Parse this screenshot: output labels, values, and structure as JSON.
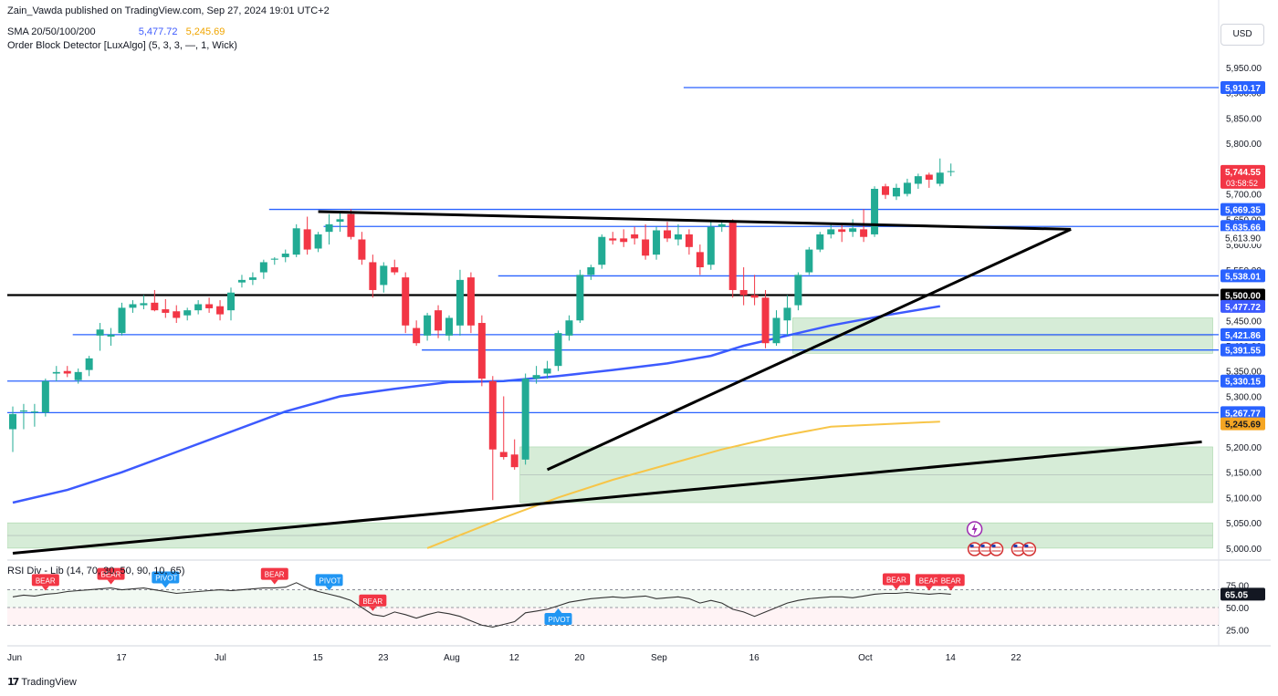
{
  "header": {
    "publisher": "Zain_Vawda published on TradingView.com, Sep 27, 2024 19:01 UTC+2",
    "sma_label": "SMA 20/50/100/200",
    "sma_value_1": "5,477.72",
    "sma_value_2": "5,245.69",
    "indicator_label": "Order Block Detector [LuxAlgo] (5, 3, 3, —, 1, Wick)",
    "rsi_label": "RSI Div - Lib (14, 70, 30, 50, 90, 10, 65)",
    "currency": "USD"
  },
  "footer": {
    "brand": "TradingView"
  },
  "colors": {
    "up": "#26a69a",
    "down": "#f23645",
    "up_bright": "#22ab94",
    "level_line": "#2962ff",
    "sma_blue": "#3d5afe",
    "sma_orange": "#f7c548",
    "zone": "#c8e6c9",
    "last_price": "#f23645"
  },
  "chart_data": {
    "type": "candlestick",
    "symbol_currency": "USD",
    "ylim": [
      4980,
      5975
    ],
    "y_ticks": [
      5000,
      5050,
      5100,
      5150,
      5200,
      5250,
      5300,
      5350,
      5400,
      5450,
      5500,
      5550,
      5600,
      5650,
      5700,
      5750,
      5800,
      5850,
      5900,
      5950
    ],
    "x_tick_labels": [
      {
        "label": "Jun",
        "bar": 0
      },
      {
        "label": "17",
        "bar": 10
      },
      {
        "label": "Jul",
        "bar": 19
      },
      {
        "label": "15",
        "bar": 28
      },
      {
        "label": "23",
        "bar": 34
      },
      {
        "label": "Aug",
        "bar": 40
      },
      {
        "label": "12",
        "bar": 46
      },
      {
        "label": "20",
        "bar": 52
      },
      {
        "label": "Sep",
        "bar": 59
      },
      {
        "label": "16",
        "bar": 68
      },
      {
        "label": "Oct",
        "bar": 78
      },
      {
        "label": "14",
        "bar": 86
      },
      {
        "label": "22",
        "bar": 92
      }
    ],
    "candles": [
      {
        "o": 5235,
        "h": 5280,
        "l": 5190,
        "c": 5265
      },
      {
        "o": 5270,
        "h": 5285,
        "l": 5235,
        "c": 5272
      },
      {
        "o": 5268,
        "h": 5285,
        "l": 5240,
        "c": 5270
      },
      {
        "o": 5268,
        "h": 5335,
        "l": 5260,
        "c": 5330
      },
      {
        "o": 5345,
        "h": 5360,
        "l": 5330,
        "c": 5348
      },
      {
        "o": 5350,
        "h": 5360,
        "l": 5338,
        "c": 5345
      },
      {
        "o": 5332,
        "h": 5355,
        "l": 5325,
        "c": 5348
      },
      {
        "o": 5352,
        "h": 5380,
        "l": 5340,
        "c": 5375
      },
      {
        "o": 5420,
        "h": 5445,
        "l": 5390,
        "c": 5432
      },
      {
        "o": 5418,
        "h": 5435,
        "l": 5400,
        "c": 5422
      },
      {
        "o": 5425,
        "h": 5485,
        "l": 5420,
        "c": 5475
      },
      {
        "o": 5475,
        "h": 5490,
        "l": 5465,
        "c": 5482
      },
      {
        "o": 5480,
        "h": 5500,
        "l": 5472,
        "c": 5484
      },
      {
        "o": 5485,
        "h": 5510,
        "l": 5468,
        "c": 5470
      },
      {
        "o": 5472,
        "h": 5492,
        "l": 5455,
        "c": 5465
      },
      {
        "o": 5468,
        "h": 5480,
        "l": 5445,
        "c": 5455
      },
      {
        "o": 5460,
        "h": 5475,
        "l": 5450,
        "c": 5470
      },
      {
        "o": 5470,
        "h": 5490,
        "l": 5462,
        "c": 5482
      },
      {
        "o": 5482,
        "h": 5495,
        "l": 5465,
        "c": 5474
      },
      {
        "o": 5478,
        "h": 5490,
        "l": 5450,
        "c": 5462
      },
      {
        "o": 5470,
        "h": 5515,
        "l": 5450,
        "c": 5505
      },
      {
        "o": 5525,
        "h": 5540,
        "l": 5515,
        "c": 5530
      },
      {
        "o": 5530,
        "h": 5545,
        "l": 5520,
        "c": 5535
      },
      {
        "o": 5545,
        "h": 5570,
        "l": 5532,
        "c": 5565
      },
      {
        "o": 5570,
        "h": 5575,
        "l": 5560,
        "c": 5572
      },
      {
        "o": 5575,
        "h": 5590,
        "l": 5565,
        "c": 5582
      },
      {
        "o": 5580,
        "h": 5640,
        "l": 5575,
        "c": 5632
      },
      {
        "o": 5630,
        "h": 5655,
        "l": 5580,
        "c": 5590
      },
      {
        "o": 5592,
        "h": 5625,
        "l": 5585,
        "c": 5620
      },
      {
        "o": 5625,
        "h": 5660,
        "l": 5600,
        "c": 5640
      },
      {
        "o": 5645,
        "h": 5665,
        "l": 5625,
        "c": 5650
      },
      {
        "o": 5660,
        "h": 5670,
        "l": 5610,
        "c": 5615
      },
      {
        "o": 5610,
        "h": 5625,
        "l": 5560,
        "c": 5570
      },
      {
        "o": 5565,
        "h": 5580,
        "l": 5495,
        "c": 5510
      },
      {
        "o": 5520,
        "h": 5565,
        "l": 5505,
        "c": 5558
      },
      {
        "o": 5555,
        "h": 5570,
        "l": 5540,
        "c": 5545
      },
      {
        "o": 5535,
        "h": 5545,
        "l": 5425,
        "c": 5440
      },
      {
        "o": 5435,
        "h": 5450,
        "l": 5400,
        "c": 5405
      },
      {
        "o": 5420,
        "h": 5465,
        "l": 5410,
        "c": 5460
      },
      {
        "o": 5470,
        "h": 5480,
        "l": 5415,
        "c": 5430
      },
      {
        "o": 5420,
        "h": 5460,
        "l": 5410,
        "c": 5455
      },
      {
        "o": 5440,
        "h": 5550,
        "l": 5420,
        "c": 5530
      },
      {
        "o": 5535,
        "h": 5545,
        "l": 5425,
        "c": 5440
      },
      {
        "o": 5445,
        "h": 5460,
        "l": 5320,
        "c": 5335
      },
      {
        "o": 5330,
        "h": 5340,
        "l": 5095,
        "c": 5195
      },
      {
        "o": 5190,
        "h": 5300,
        "l": 5175,
        "c": 5180
      },
      {
        "o": 5185,
        "h": 5215,
        "l": 5155,
        "c": 5160
      },
      {
        "o": 5175,
        "h": 5345,
        "l": 5165,
        "c": 5335
      },
      {
        "o": 5335,
        "h": 5360,
        "l": 5325,
        "c": 5342
      },
      {
        "o": 5345,
        "h": 5370,
        "l": 5335,
        "c": 5355
      },
      {
        "o": 5360,
        "h": 5430,
        "l": 5350,
        "c": 5425
      },
      {
        "o": 5420,
        "h": 5460,
        "l": 5410,
        "c": 5450
      },
      {
        "o": 5450,
        "h": 5550,
        "l": 5445,
        "c": 5540
      },
      {
        "o": 5540,
        "h": 5560,
        "l": 5530,
        "c": 5555
      },
      {
        "o": 5560,
        "h": 5620,
        "l": 5552,
        "c": 5615
      },
      {
        "o": 5612,
        "h": 5625,
        "l": 5600,
        "c": 5608
      },
      {
        "o": 5612,
        "h": 5630,
        "l": 5595,
        "c": 5605
      },
      {
        "o": 5620,
        "h": 5635,
        "l": 5600,
        "c": 5612
      },
      {
        "o": 5610,
        "h": 5640,
        "l": 5570,
        "c": 5578
      },
      {
        "o": 5580,
        "h": 5635,
        "l": 5570,
        "c": 5628
      },
      {
        "o": 5628,
        "h": 5645,
        "l": 5605,
        "c": 5612
      },
      {
        "o": 5610,
        "h": 5640,
        "l": 5598,
        "c": 5620
      },
      {
        "o": 5620,
        "h": 5630,
        "l": 5580,
        "c": 5595
      },
      {
        "o": 5585,
        "h": 5600,
        "l": 5540,
        "c": 5555
      },
      {
        "o": 5560,
        "h": 5645,
        "l": 5550,
        "c": 5635
      },
      {
        "o": 5635,
        "h": 5648,
        "l": 5625,
        "c": 5640
      },
      {
        "o": 5645,
        "h": 5650,
        "l": 5495,
        "c": 5510
      },
      {
        "o": 5510,
        "h": 5555,
        "l": 5480,
        "c": 5500
      },
      {
        "o": 5500,
        "h": 5540,
        "l": 5480,
        "c": 5495
      },
      {
        "o": 5495,
        "h": 5510,
        "l": 5395,
        "c": 5405
      },
      {
        "o": 5405,
        "h": 5470,
        "l": 5400,
        "c": 5455
      },
      {
        "o": 5450,
        "h": 5500,
        "l": 5420,
        "c": 5475
      },
      {
        "o": 5480,
        "h": 5545,
        "l": 5470,
        "c": 5540
      },
      {
        "o": 5545,
        "h": 5595,
        "l": 5540,
        "c": 5590
      },
      {
        "o": 5590,
        "h": 5625,
        "l": 5585,
        "c": 5620
      },
      {
        "o": 5620,
        "h": 5640,
        "l": 5612,
        "c": 5630
      },
      {
        "o": 5630,
        "h": 5640,
        "l": 5605,
        "c": 5625
      },
      {
        "o": 5625,
        "h": 5650,
        "l": 5615,
        "c": 5632
      },
      {
        "o": 5630,
        "h": 5670,
        "l": 5605,
        "c": 5615
      },
      {
        "o": 5620,
        "h": 5715,
        "l": 5615,
        "c": 5710
      },
      {
        "o": 5715,
        "h": 5720,
        "l": 5690,
        "c": 5698
      },
      {
        "o": 5695,
        "h": 5720,
        "l": 5688,
        "c": 5712
      },
      {
        "o": 5700,
        "h": 5730,
        "l": 5695,
        "c": 5722
      },
      {
        "o": 5720,
        "h": 5740,
        "l": 5710,
        "c": 5735
      },
      {
        "o": 5738,
        "h": 5742,
        "l": 5712,
        "c": 5728
      },
      {
        "o": 5720,
        "h": 5770,
        "l": 5715,
        "c": 5742
      },
      {
        "o": 5744,
        "h": 5760,
        "l": 5735,
        "c": 5745
      }
    ],
    "horizontal_levels": [
      {
        "value": 5910.17,
        "label": "5,910.17",
        "from_bar": 62
      },
      {
        "value": 5669.35,
        "label": "5,669.35",
        "from_bar": 24
      },
      {
        "value": 5635.66,
        "label": "5,635.66",
        "from_bar": 29
      },
      {
        "value": 5538.01,
        "label": "5,538.01",
        "from_bar": 45
      },
      {
        "value": 5500.0,
        "label": "5,500.00",
        "from_bar": 0,
        "style": "black"
      },
      {
        "value": 5421.86,
        "label": "5,421.86",
        "from_bar": 6
      },
      {
        "value": 5391.55,
        "label": "5,391.55",
        "from_bar": 38
      },
      {
        "value": 5330.15,
        "label": "5,330.15",
        "from_bar": 0
      },
      {
        "value": 5267.77,
        "label": "5,267.77",
        "from_bar": 0
      }
    ],
    "axis_badges": [
      {
        "value": 5744.55,
        "label": "5,744.55",
        "sub": "03:58:52",
        "kind": "last"
      },
      {
        "value": 5613.9,
        "label": "5,613.90",
        "kind": "plain"
      },
      {
        "value": 5477.72,
        "label": "5,477.72",
        "kind": "sma_blue"
      },
      {
        "value": 5421.86,
        "label": "5,421.86",
        "kind": "level"
      },
      {
        "value": 5245.69,
        "label": "5,245.69",
        "kind": "sma_orange"
      }
    ],
    "sma_blue": [
      [
        0,
        5090
      ],
      [
        5,
        5115
      ],
      [
        10,
        5150
      ],
      [
        15,
        5190
      ],
      [
        20,
        5230
      ],
      [
        25,
        5270
      ],
      [
        30,
        5300
      ],
      [
        35,
        5315
      ],
      [
        40,
        5328
      ],
      [
        45,
        5330
      ],
      [
        50,
        5340
      ],
      [
        55,
        5352
      ],
      [
        60,
        5365
      ],
      [
        64,
        5380
      ],
      [
        67,
        5400
      ],
      [
        70,
        5415
      ],
      [
        75,
        5440
      ],
      [
        80,
        5460
      ],
      [
        85,
        5478
      ]
    ],
    "sma_orange": [
      [
        38,
        5000
      ],
      [
        45,
        5060
      ],
      [
        50,
        5100
      ],
      [
        55,
        5135
      ],
      [
        60,
        5165
      ],
      [
        65,
        5195
      ],
      [
        70,
        5220
      ],
      [
        75,
        5240
      ],
      [
        85,
        5250
      ]
    ],
    "trend_lines": [
      {
        "from": [
          0,
          4990
        ],
        "to": [
          109,
          5210
        ]
      },
      {
        "from": [
          28,
          5665
        ],
        "to": [
          97,
          5630
        ]
      },
      {
        "from": [
          49,
          5155
        ],
        "to": [
          97,
          5630
        ]
      }
    ],
    "zones": [
      {
        "from_bar": 47,
        "to_bar": 110,
        "low": 5090,
        "high": 5200
      },
      {
        "from_bar": 0,
        "to_bar": 110,
        "low": 5000,
        "high": 5050
      },
      {
        "from_bar": 72,
        "to_bar": 110,
        "low": 5385,
        "high": 5455
      }
    ],
    "rsi": {
      "ylim": [
        15,
        85
      ],
      "ticks": [
        25,
        50,
        75
      ],
      "last_value": 65.05,
      "last_label": "65.05",
      "overbought": 70,
      "midline": 50,
      "oversold": 30,
      "values": [
        62,
        64,
        63,
        65,
        66,
        68,
        69,
        70,
        71,
        72,
        70,
        71,
        72,
        70,
        68,
        66,
        67,
        68,
        69,
        70,
        69,
        70,
        71,
        72,
        72,
        73,
        78,
        72,
        68,
        65,
        62,
        58,
        50,
        42,
        40,
        45,
        42,
        38,
        42,
        45,
        43,
        40,
        35,
        30,
        28,
        31,
        34,
        44,
        46,
        48,
        52,
        56,
        58,
        60,
        61,
        62,
        61,
        62,
        63,
        60,
        61,
        62,
        60,
        55,
        58,
        55,
        48,
        45,
        40,
        45,
        50,
        55,
        58,
        60,
        61,
        62,
        62,
        61,
        63,
        65,
        66,
        66,
        67,
        66,
        65,
        66,
        65
      ]
    },
    "rsi_markers": [
      {
        "bar": 3,
        "label": "BEAR",
        "kind": "bear"
      },
      {
        "bar": 9,
        "label": "BEAR",
        "kind": "bear"
      },
      {
        "bar": 14,
        "label": "PIVOT",
        "kind": "pivot_top"
      },
      {
        "bar": 24,
        "label": "BEAR",
        "kind": "bear"
      },
      {
        "bar": 29,
        "label": "PIVOT",
        "kind": "pivot_top"
      },
      {
        "bar": 33,
        "label": "BEAR",
        "kind": "bear"
      },
      {
        "bar": 50,
        "label": "PIVOT",
        "kind": "pivot_bottom"
      },
      {
        "bar": 81,
        "label": "BEAR",
        "kind": "bear"
      },
      {
        "bar": 84,
        "label": "BEAR",
        "kind": "bear"
      },
      {
        "bar": 86,
        "label": "BEAR",
        "kind": "bear"
      }
    ],
    "event_icons": {
      "bars": [
        88,
        89,
        90,
        92,
        93
      ],
      "flash_bar": 88
    }
  }
}
